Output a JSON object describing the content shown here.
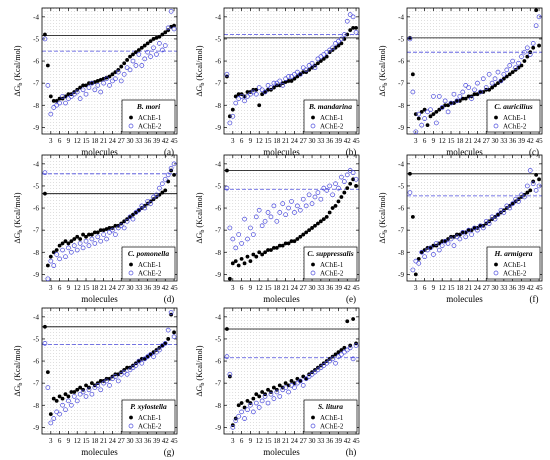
{
  "figure": {
    "common": {
      "xlabel": "molecules",
      "ylabel": "ΔG",
      "ylabel_sub": "b",
      "ylabel_unit": "(Kcal/mol)",
      "x_ticks": [
        3,
        6,
        9,
        12,
        15,
        18,
        21,
        24,
        27,
        30,
        33,
        36,
        39,
        42,
        45
      ],
      "y_ticks": [
        -9,
        -8,
        -7,
        -6,
        -5,
        -4
      ],
      "xlim": [
        0,
        46
      ],
      "ylim": [
        -9.3,
        -3.6
      ],
      "series_names": [
        "AChE-1",
        "AChE-2"
      ],
      "colors": {
        "ache1": "#000000",
        "ache2": "#4b4bdc",
        "grid": "#bfbfbf"
      }
    }
  },
  "chart_data": [
    {
      "type": "scatter",
      "title": "B. mori",
      "panel_label": "(a)",
      "legend_position": "bottom-right",
      "ref_lines": {
        "AChE-1": -4.85,
        "AChE-2": -5.55
      },
      "series": [
        {
          "name": "AChE-1",
          "values": [
            -4.8,
            -6.2,
            -7.6,
            -7.8,
            -7.8,
            -7.7,
            -7.7,
            -7.6,
            -7.5,
            -7.5,
            -7.4,
            -7.3,
            -7.2,
            -7.1,
            -7.1,
            -7.0,
            -7.0,
            -6.95,
            -6.9,
            -6.85,
            -6.8,
            -6.75,
            -6.7,
            -6.6,
            -6.5,
            -6.4,
            -6.25,
            -6.1,
            -5.95,
            -5.8,
            -5.7,
            -5.6,
            -5.5,
            -5.4,
            -5.3,
            -5.2,
            -5.1,
            -5.0,
            -4.95,
            -4.9,
            -4.8,
            -4.7,
            -4.6,
            -4.45,
            -4.4
          ]
        },
        {
          "name": "AChE-2",
          "values": [
            -5.0,
            -7.1,
            -8.4,
            -8.1,
            -8.0,
            -7.9,
            -7.6,
            -7.9,
            -7.7,
            -7.6,
            -7.5,
            -7.4,
            -7.7,
            -7.3,
            -7.5,
            -7.2,
            -7.0,
            -7.3,
            -7.1,
            -7.4,
            -7.0,
            -6.8,
            -7.1,
            -6.9,
            -6.8,
            -6.5,
            -6.9,
            -6.6,
            -6.3,
            -6.4,
            -6.0,
            -6.2,
            -5.7,
            -6.2,
            -5.9,
            -5.6,
            -5.8,
            -5.4,
            -5.7,
            -5.2,
            -5.5,
            -5.3,
            -4.5,
            -3.75,
            -4.55
          ]
        }
      ]
    },
    {
      "type": "scatter",
      "title": "B. mandarina",
      "panel_label": "(b)",
      "legend_position": "bottom-right",
      "ref_lines": {
        "AChE-1": -4.95,
        "AChE-2": -4.8
      },
      "series": [
        {
          "name": "AChE-1",
          "values": [
            -6.7,
            -8.5,
            -8.2,
            -7.6,
            -7.5,
            -7.5,
            -7.6,
            -7.4,
            -7.4,
            -7.3,
            -7.3,
            -8.0,
            -7.5,
            -7.4,
            -7.3,
            -7.3,
            -7.2,
            -7.1,
            -7.1,
            -7.0,
            -6.95,
            -6.9,
            -6.9,
            -6.8,
            -6.7,
            -6.6,
            -6.5,
            -6.5,
            -6.4,
            -6.3,
            -6.2,
            -6.1,
            -6.0,
            -5.9,
            -5.8,
            -5.6,
            -5.5,
            -5.4,
            -5.3,
            -5.2,
            -5.0,
            -4.8,
            -4.6,
            -4.5,
            -4.5
          ]
        },
        {
          "name": "AChE-2",
          "values": [
            -6.6,
            -8.8,
            -8.5,
            -7.9,
            -7.7,
            -7.6,
            -7.8,
            -7.6,
            -7.5,
            -7.4,
            -7.5,
            -7.2,
            -7.3,
            -7.4,
            -7.1,
            -7.2,
            -7.0,
            -7.0,
            -6.9,
            -7.1,
            -6.8,
            -6.7,
            -6.7,
            -6.6,
            -6.5,
            -6.6,
            -6.3,
            -6.4,
            -6.2,
            -6.1,
            -6.3,
            -5.9,
            -5.8,
            -5.7,
            -5.6,
            -5.5,
            -5.4,
            -5.2,
            -5.1,
            -5.0,
            -4.8,
            -4.2,
            -3.9,
            -4.0,
            -4.7
          ]
        }
      ]
    },
    {
      "type": "scatter",
      "title": "C. auricilius",
      "panel_label": "(c)",
      "legend_position": "bottom-right",
      "ref_lines": {
        "AChE-1": -4.95,
        "AChE-2": -5.6
      },
      "series": [
        {
          "name": "AChE-1",
          "values": [
            -4.95,
            -6.6,
            -8.4,
            -8.6,
            -8.3,
            -8.2,
            -8.9,
            -8.5,
            -8.4,
            -8.3,
            -8.2,
            -8.1,
            -8.0,
            -8.0,
            -7.9,
            -7.9,
            -7.8,
            -7.8,
            -7.7,
            -7.7,
            -7.6,
            -7.6,
            -7.5,
            -7.5,
            -7.4,
            -7.4,
            -7.3,
            -7.3,
            -7.2,
            -7.1,
            -7.0,
            -6.9,
            -6.8,
            -6.7,
            -6.6,
            -6.5,
            -6.4,
            -6.3,
            -6.2,
            -6.0,
            -5.8,
            -5.6,
            -5.4,
            -3.7,
            -5.3
          ]
        },
        {
          "name": "AChE-2",
          "values": [
            -5.0,
            -7.4,
            -9.2,
            -8.4,
            -8.9,
            -8.6,
            -8.3,
            -8.2,
            -7.6,
            -8.8,
            -7.6,
            -8.1,
            -7.8,
            -8.3,
            -7.9,
            -7.5,
            -7.8,
            -7.6,
            -7.4,
            -7.1,
            -7.2,
            -7.7,
            -7.3,
            -7.0,
            -7.4,
            -6.8,
            -7.2,
            -6.6,
            -7.0,
            -6.8,
            -6.5,
            -6.9,
            -6.6,
            -6.4,
            -6.2,
            -6.0,
            -6.3,
            -6.1,
            -5.8,
            -5.6,
            -5.4,
            -5.7,
            -5.2,
            -4.4,
            -4.0
          ]
        }
      ]
    },
    {
      "type": "scatter",
      "title": "C. pomonella",
      "panel_label": "(d)",
      "legend_position": "bottom-right",
      "ref_lines": {
        "AChE-1": -5.35,
        "AChE-2": -4.45
      },
      "series": [
        {
          "name": "AChE-1",
          "values": [
            -5.35,
            -8.6,
            -8.2,
            -8.0,
            -7.9,
            -7.7,
            -7.6,
            -7.5,
            -7.6,
            -7.5,
            -7.4,
            -7.3,
            -7.4,
            -7.2,
            -7.3,
            -7.2,
            -7.2,
            -7.1,
            -7.1,
            -7.0,
            -7.0,
            -6.95,
            -6.9,
            -6.9,
            -6.8,
            -6.8,
            -6.7,
            -6.6,
            -6.5,
            -6.4,
            -6.3,
            -6.2,
            -6.1,
            -6.0,
            -5.9,
            -5.8,
            -5.7,
            -5.6,
            -5.5,
            -5.4,
            -5.3,
            -5.2,
            -4.8,
            -4.3,
            -4.5
          ]
        },
        {
          "name": "AChE-2",
          "values": [
            -4.4,
            -9.2,
            -8.4,
            -8.6,
            -8.1,
            -8.3,
            -7.9,
            -8.2,
            -7.8,
            -8.0,
            -7.7,
            -7.9,
            -7.6,
            -7.8,
            -7.5,
            -7.7,
            -7.4,
            -7.6,
            -7.3,
            -7.5,
            -7.2,
            -7.4,
            -7.1,
            -7.0,
            -7.2,
            -6.9,
            -6.8,
            -6.9,
            -6.6,
            -6.4,
            -6.5,
            -6.2,
            -6.1,
            -5.9,
            -6.0,
            -5.7,
            -5.8,
            -5.5,
            -5.4,
            -5.1,
            -4.9,
            -4.7,
            -4.5,
            -4.2,
            -4.0
          ]
        }
      ]
    },
    {
      "type": "scatter",
      "title": "C. suppressalis",
      "panel_label": "(e)",
      "legend_position": "bottom-right",
      "ref_lines": {
        "AChE-1": -4.3,
        "AChE-2": -5.15
      },
      "series": [
        {
          "name": "AChE-1",
          "values": [
            -4.3,
            -9.2,
            -8.5,
            -8.4,
            -8.6,
            -8.3,
            -8.5,
            -8.2,
            -8.4,
            -8.1,
            -8.2,
            -8.0,
            -8.1,
            -8.0,
            -7.9,
            -7.9,
            -7.8,
            -7.8,
            -7.7,
            -7.7,
            -7.6,
            -7.6,
            -7.5,
            -7.5,
            -7.4,
            -7.3,
            -7.2,
            -7.1,
            -7.0,
            -6.9,
            -6.8,
            -6.7,
            -6.6,
            -6.5,
            -6.4,
            -6.2,
            -6.0,
            -5.9,
            -5.7,
            -5.5,
            -5.3,
            -5.1,
            -4.9,
            -4.7,
            -5.0
          ]
        },
        {
          "name": "AChE-2",
          "values": [
            -5.1,
            -6.9,
            -7.4,
            -7.8,
            -7.2,
            -7.6,
            -6.5,
            -7.4,
            -6.9,
            -7.2,
            -6.4,
            -6.1,
            -6.8,
            -6.6,
            -6.2,
            -6.4,
            -5.9,
            -6.6,
            -6.2,
            -5.8,
            -6.3,
            -6.0,
            -5.7,
            -6.2,
            -5.9,
            -6.1,
            -5.6,
            -5.9,
            -5.4,
            -5.8,
            -5.5,
            -5.3,
            -5.6,
            -5.1,
            -5.2,
            -5.0,
            -5.4,
            -4.9,
            -5.1,
            -4.6,
            -4.8,
            -4.5,
            -4.3,
            -4.4,
            -4.7
          ]
        }
      ]
    },
    {
      "type": "scatter",
      "title": "H. armigera",
      "panel_label": "(f)",
      "legend_position": "bottom-right",
      "ref_lines": {
        "AChE-1": -4.45,
        "AChE-2": -5.45
      },
      "series": [
        {
          "name": "AChE-1",
          "values": [
            -4.45,
            -6.4,
            -9.0,
            -8.3,
            -8.0,
            -7.9,
            -7.8,
            -7.8,
            -7.7,
            -7.7,
            -7.6,
            -7.5,
            -7.5,
            -7.4,
            -7.3,
            -7.3,
            -7.2,
            -7.2,
            -7.1,
            -7.1,
            -7.0,
            -7.0,
            -6.9,
            -6.9,
            -6.8,
            -6.8,
            -6.7,
            -6.6,
            -6.5,
            -6.4,
            -6.3,
            -6.2,
            -6.1,
            -6.0,
            -5.9,
            -5.8,
            -5.7,
            -5.6,
            -5.5,
            -5.4,
            -5.3,
            -5.2,
            -4.8,
            -4.5,
            -4.7
          ]
        },
        {
          "name": "AChE-2",
          "values": [
            -5.3,
            -8.8,
            -8.4,
            -8.5,
            -8.0,
            -8.2,
            -7.9,
            -7.8,
            -8.1,
            -7.6,
            -7.9,
            -7.7,
            -7.5,
            -7.6,
            -7.4,
            -7.7,
            -7.3,
            -7.4,
            -7.1,
            -7.3,
            -7.0,
            -7.2,
            -6.9,
            -7.0,
            -6.8,
            -6.9,
            -6.6,
            -6.7,
            -6.4,
            -6.5,
            -6.3,
            -6.1,
            -6.2,
            -5.9,
            -6.0,
            -5.8,
            -5.6,
            -5.7,
            -5.4,
            -5.5,
            -5.0,
            -4.3,
            -4.9,
            -5.2,
            -5.0
          ]
        }
      ]
    },
    {
      "type": "scatter",
      "title": "P. xylostella",
      "panel_label": "(g)",
      "legend_position": "bottom-right",
      "ref_lines": {
        "AChE-1": -4.45,
        "AChE-2": -5.25
      },
      "series": [
        {
          "name": "AChE-1",
          "values": [
            -4.45,
            -6.5,
            -8.4,
            -7.7,
            -7.8,
            -7.6,
            -7.7,
            -7.5,
            -7.6,
            -7.4,
            -7.4,
            -7.3,
            -7.2,
            -7.3,
            -7.1,
            -7.2,
            -7.0,
            -7.1,
            -7.0,
            -6.9,
            -6.9,
            -6.8,
            -6.8,
            -6.7,
            -6.6,
            -6.6,
            -6.5,
            -6.4,
            -6.3,
            -6.3,
            -6.2,
            -6.1,
            -6.0,
            -5.9,
            -5.9,
            -5.8,
            -5.7,
            -5.6,
            -5.5,
            -5.4,
            -5.3,
            -5.2,
            -5.0,
            -3.9,
            -4.7
          ]
        },
        {
          "name": "AChE-2",
          "values": [
            -5.2,
            -7.2,
            -8.8,
            -8.6,
            -8.3,
            -8.4,
            -8.0,
            -8.2,
            -7.8,
            -8.0,
            -7.6,
            -7.8,
            -7.5,
            -7.4,
            -7.6,
            -7.3,
            -7.5,
            -7.2,
            -7.1,
            -7.3,
            -7.0,
            -6.9,
            -7.1,
            -6.8,
            -6.7,
            -6.9,
            -6.6,
            -6.5,
            -6.6,
            -6.4,
            -6.3,
            -6.2,
            -6.0,
            -6.1,
            -5.9,
            -5.8,
            -5.7,
            -5.8,
            -5.6,
            -5.5,
            -5.3,
            -5.2,
            -4.6,
            -3.8,
            -4.9
          ]
        }
      ]
    },
    {
      "type": "scatter",
      "title": "S. litura",
      "panel_label": "(h)",
      "legend_position": "bottom-right",
      "ref_lines": {
        "AChE-1": -4.55,
        "AChE-2": -5.85
      },
      "series": [
        {
          "name": "AChE-1",
          "values": [
            -4.55,
            -6.7,
            -8.9,
            -8.6,
            -8.0,
            -7.9,
            -8.1,
            -7.8,
            -7.9,
            -7.7,
            -7.5,
            -7.6,
            -7.4,
            -7.5,
            -7.3,
            -7.4,
            -7.2,
            -7.3,
            -7.1,
            -7.2,
            -7.0,
            -7.1,
            -6.9,
            -7.0,
            -6.8,
            -6.9,
            -6.7,
            -6.8,
            -6.6,
            -6.5,
            -6.4,
            -6.3,
            -6.2,
            -6.1,
            -6.0,
            -5.9,
            -5.8,
            -5.7,
            -5.6,
            -5.5,
            -5.4,
            -4.2,
            -5.3,
            -4.1,
            -5.2
          ]
        },
        {
          "name": "AChE-2",
          "values": [
            -5.8,
            -6.6,
            -9.0,
            -8.7,
            -8.5,
            -8.3,
            -8.6,
            -8.2,
            -8.0,
            -8.3,
            -7.9,
            -8.1,
            -7.8,
            -7.6,
            -7.9,
            -7.5,
            -7.7,
            -7.4,
            -7.6,
            -7.3,
            -7.2,
            -7.4,
            -7.1,
            -7.2,
            -7.0,
            -6.9,
            -7.1,
            -6.8,
            -6.7,
            -6.6,
            -6.5,
            -6.4,
            -6.3,
            -6.2,
            -6.1,
            -6.0,
            -5.9,
            -6.1,
            -5.8,
            -5.7,
            -5.6,
            -5.5,
            -5.4,
            -5.9,
            -5.3
          ]
        }
      ]
    }
  ]
}
